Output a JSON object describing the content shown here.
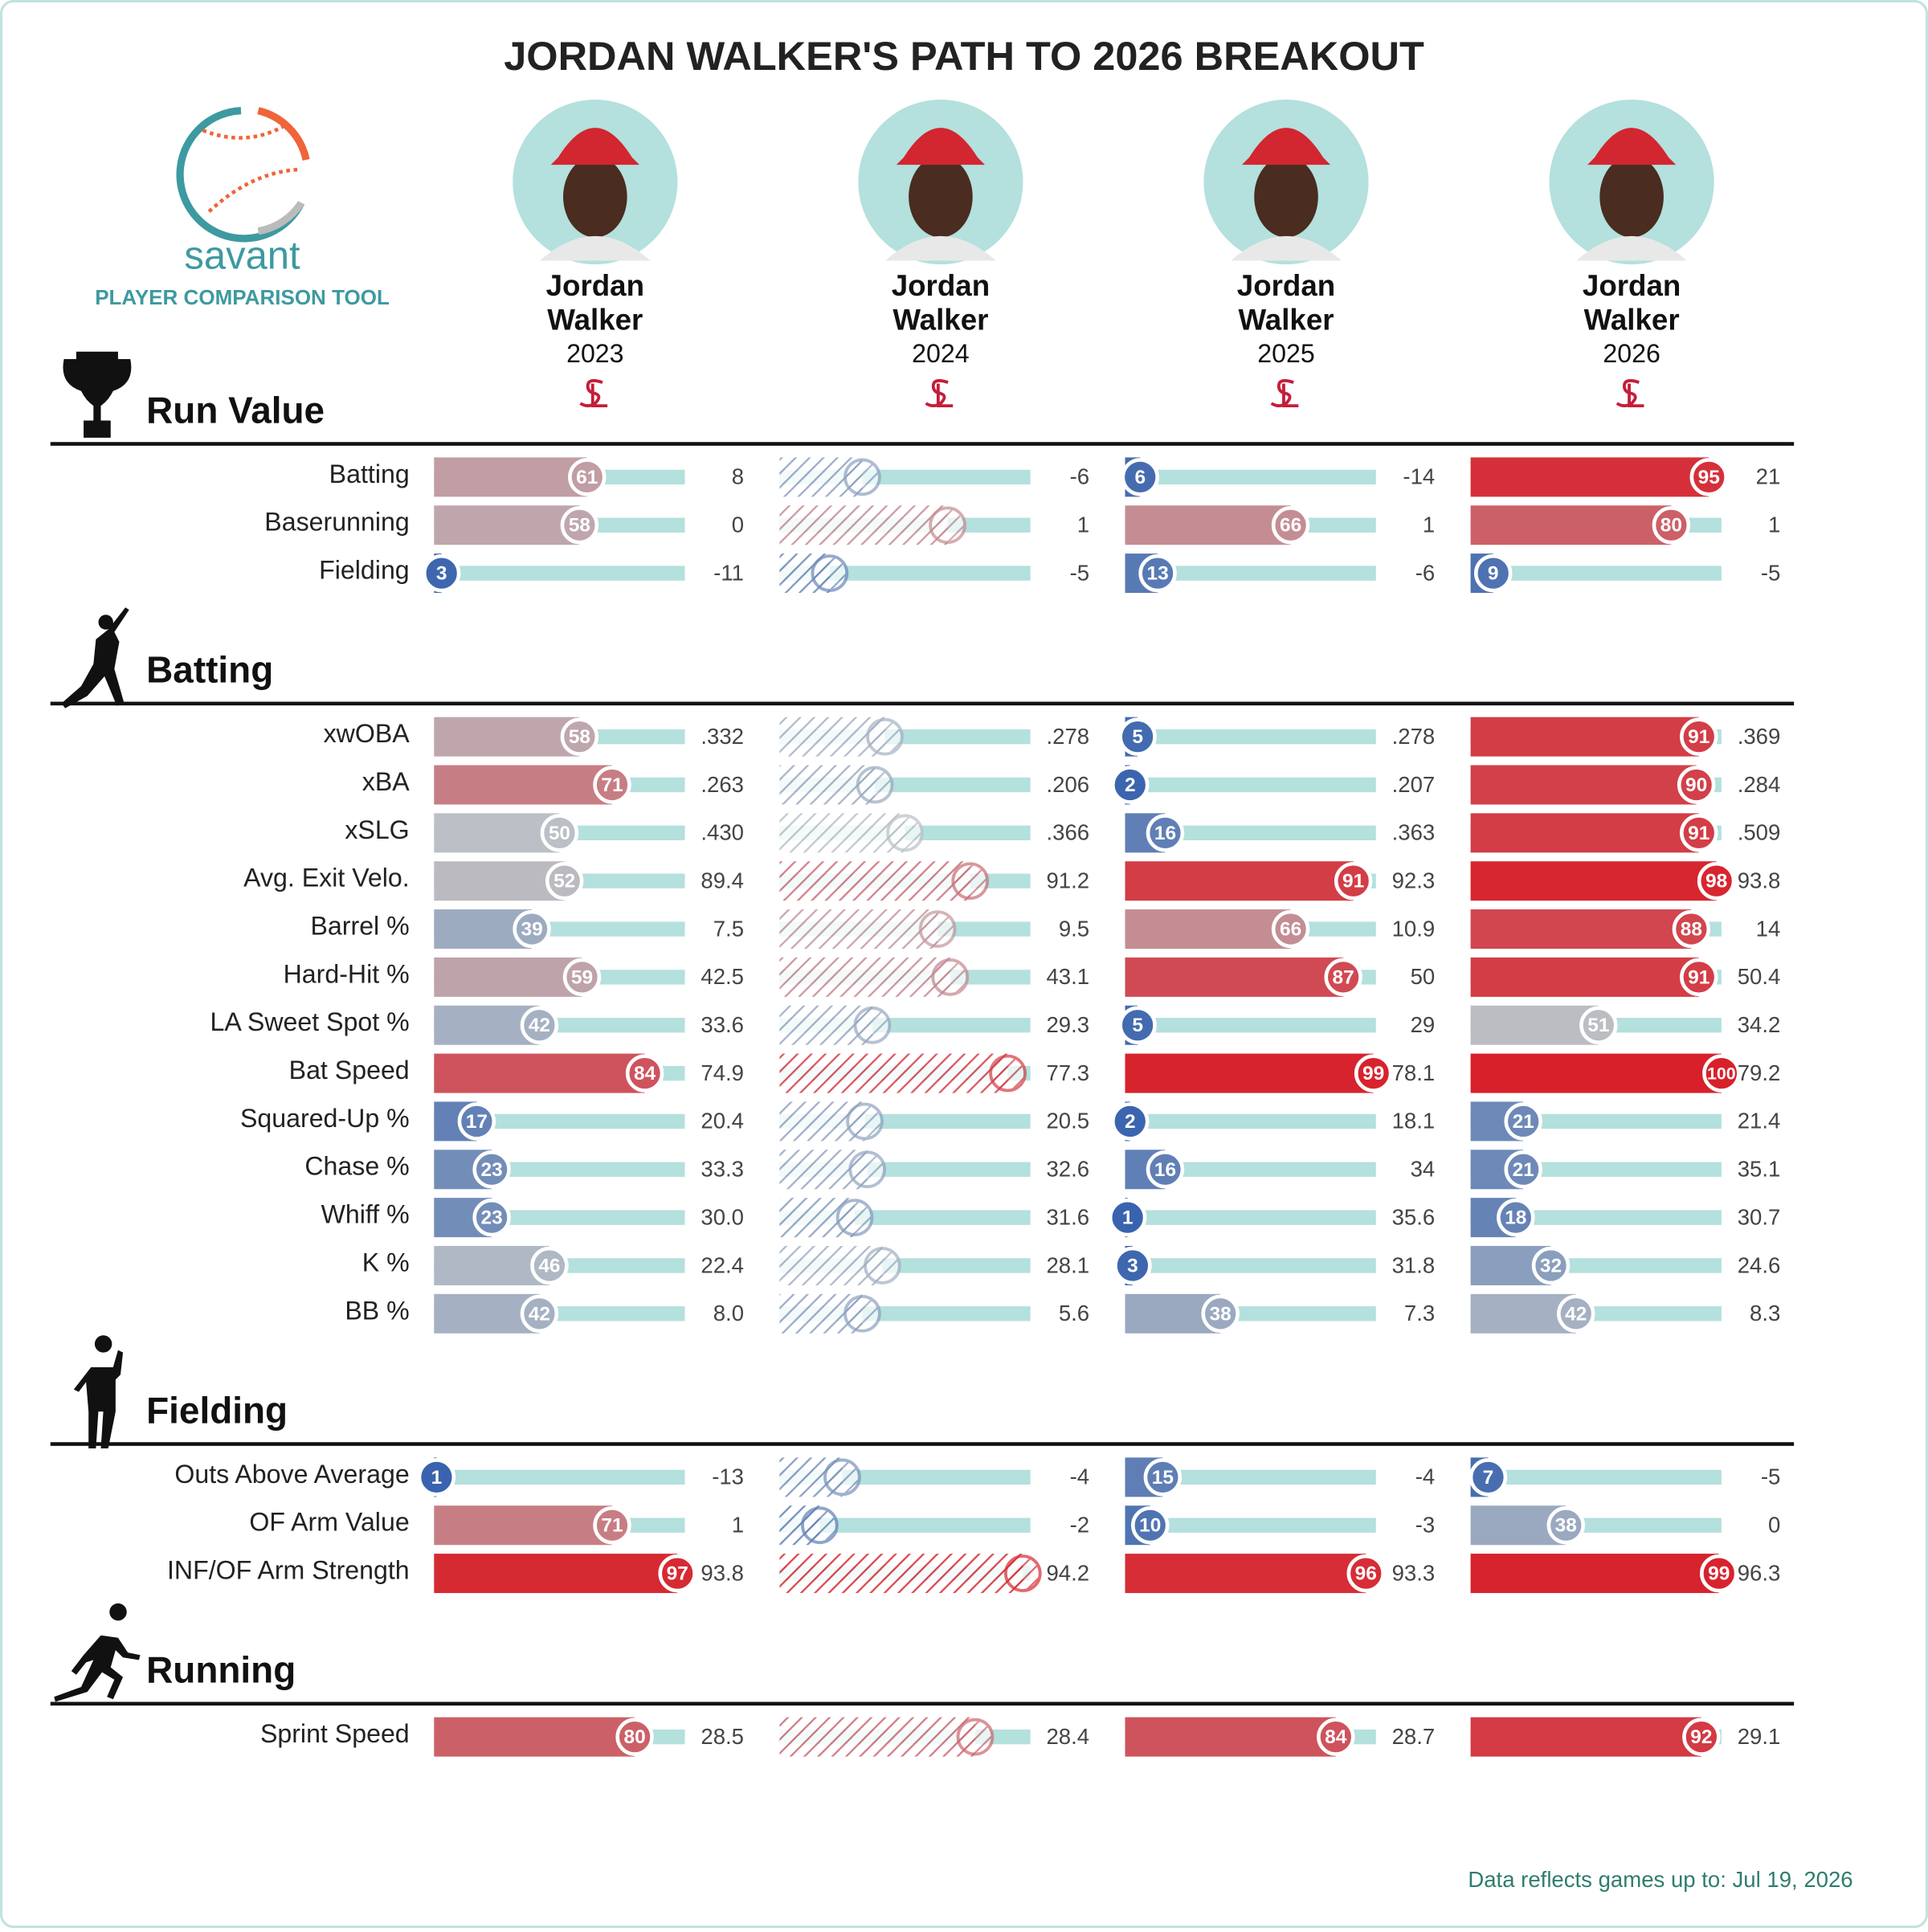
{
  "title": "JORDAN WALKER'S PATH TO 2026 BREAKOUT",
  "logo": {
    "name": "savant",
    "subtitle": "PLAYER COMPARISON TOOL"
  },
  "players": [
    {
      "first": "Jordan",
      "last": "Walker",
      "season": "2023",
      "qualified": true
    },
    {
      "first": "Jordan",
      "last": "Walker",
      "season": "2024",
      "qualified": false
    },
    {
      "first": "Jordan",
      "last": "Walker",
      "season": "2025",
      "qualified": true
    },
    {
      "first": "Jordan",
      "last": "Walker",
      "season": "2026",
      "qualified": true
    }
  ],
  "sections": [
    {
      "title": "Run Value",
      "metrics": [
        {
          "label": "Batting",
          "percentiles": [
            61,
            33,
            6,
            95
          ],
          "values": [
            "8",
            "-6",
            "-14",
            "21"
          ]
        },
        {
          "label": "Baserunning",
          "percentiles": [
            58,
            67,
            66,
            80
          ],
          "values": [
            "0",
            "1",
            "1",
            "1"
          ]
        },
        {
          "label": "Fielding",
          "percentiles": [
            3,
            20,
            13,
            9
          ],
          "values": [
            "-11",
            "-5",
            "-6",
            "-5"
          ]
        }
      ]
    },
    {
      "title": "Batting",
      "metrics": [
        {
          "label": "xwOBA",
          "percentiles": [
            58,
            42,
            5,
            91
          ],
          "values": [
            ".332",
            ".278",
            ".278",
            ".369"
          ]
        },
        {
          "label": "xBA",
          "percentiles": [
            71,
            38,
            2,
            90
          ],
          "values": [
            ".263",
            ".206",
            ".207",
            ".284"
          ]
        },
        {
          "label": "xSLG",
          "percentiles": [
            50,
            50,
            16,
            91
          ],
          "values": [
            ".430",
            ".366",
            ".363",
            ".509"
          ]
        },
        {
          "label": "Avg. Exit Velo.",
          "percentiles": [
            52,
            76,
            91,
            98
          ],
          "values": [
            "89.4",
            "91.2",
            "92.3",
            "93.8"
          ]
        },
        {
          "label": "Barrel %",
          "percentiles": [
            39,
            63,
            66,
            88
          ],
          "values": [
            "7.5",
            "9.5",
            "10.9",
            "14"
          ]
        },
        {
          "label": "Hard-Hit %",
          "percentiles": [
            59,
            68,
            87,
            91
          ],
          "values": [
            "42.5",
            "43.1",
            "50",
            "50.4"
          ]
        },
        {
          "label": "LA Sweet Spot %",
          "percentiles": [
            42,
            37,
            5,
            51
          ],
          "values": [
            "33.6",
            "29.3",
            "29",
            "34.2"
          ]
        },
        {
          "label": "Bat Speed",
          "percentiles": [
            84,
            91,
            99,
            100
          ],
          "values": [
            "74.9",
            "77.3",
            "78.1",
            "79.2"
          ]
        },
        {
          "label": "Squared-Up %",
          "percentiles": [
            17,
            34,
            2,
            21
          ],
          "values": [
            "20.4",
            "20.5",
            "18.1",
            "21.4"
          ]
        },
        {
          "label": "Chase %",
          "percentiles": [
            23,
            35,
            16,
            21
          ],
          "values": [
            "33.3",
            "32.6",
            "34",
            "35.1"
          ]
        },
        {
          "label": "Whiff %",
          "percentiles": [
            23,
            30,
            1,
            18
          ],
          "values": [
            "30.0",
            "31.6",
            "35.6",
            "30.7"
          ]
        },
        {
          "label": "K %",
          "percentiles": [
            46,
            41,
            3,
            32
          ],
          "values": [
            "22.4",
            "28.1",
            "31.8",
            "24.6"
          ]
        },
        {
          "label": "BB %",
          "percentiles": [
            42,
            33,
            38,
            42
          ],
          "values": [
            "8.0",
            "5.6",
            "7.3",
            "8.3"
          ]
        }
      ]
    },
    {
      "title": "Fielding",
      "metrics": [
        {
          "label": "Outs Above Average",
          "percentiles": [
            1,
            25,
            15,
            7
          ],
          "values": [
            "-13",
            "-4",
            "-4",
            "-5"
          ]
        },
        {
          "label": "OF Arm Value",
          "percentiles": [
            71,
            16,
            10,
            38
          ],
          "values": [
            "1",
            "-2",
            "-3",
            "0"
          ]
        },
        {
          "label": "INF/OF Arm Strength",
          "percentiles": [
            97,
            97,
            96,
            99
          ],
          "values": [
            "93.8",
            "94.2",
            "93.3",
            "96.3"
          ]
        }
      ]
    },
    {
      "title": "Running",
      "metrics": [
        {
          "label": "Sprint Speed",
          "percentiles": [
            80,
            78,
            84,
            92
          ],
          "values": [
            "28.5",
            "28.4",
            "28.7",
            "29.1"
          ]
        }
      ]
    }
  ],
  "footer": "Data reflects games up to: Jul 19, 2026"
}
